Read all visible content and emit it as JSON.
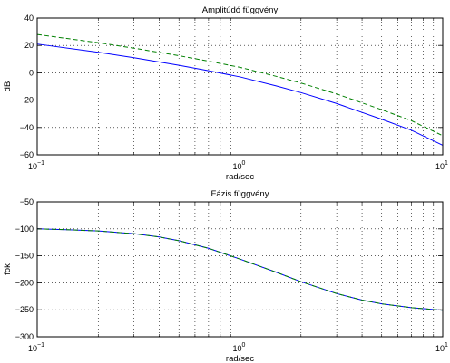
{
  "chart_data": [
    {
      "type": "line",
      "title": "Amplitúdó függvény",
      "xlabel": "rad/sec",
      "ylabel": "dB",
      "xscale": "log",
      "xlim": [
        0.1,
        10
      ],
      "ylim": [
        -60,
        40
      ],
      "x_tick_labels": [
        {
          "base": "10",
          "exp": "−1"
        },
        {
          "base": "10",
          "exp": "0"
        },
        {
          "base": "10",
          "exp": "1"
        }
      ],
      "y_ticks": [
        40,
        20,
        0,
        -20,
        -40,
        -60
      ],
      "grid": "dotted",
      "x": [
        0.1,
        0.2,
        0.3,
        0.5,
        0.7,
        1,
        1.5,
        2,
        3,
        4,
        5,
        7,
        10
      ],
      "series": [
        {
          "color": "#0000ff",
          "style": "solid",
          "values": [
            21,
            15,
            11,
            5.5,
            1.5,
            -3,
            -9.5,
            -14.5,
            -22.5,
            -29,
            -34,
            -42,
            -53
          ]
        },
        {
          "color": "#008000",
          "style": "dashed",
          "values": [
            28,
            22,
            18,
            12.5,
            8.5,
            4,
            -2.5,
            -7.5,
            -15.5,
            -22,
            -27,
            -35,
            -46
          ]
        }
      ]
    },
    {
      "type": "line",
      "title": "Fázis függvény",
      "xlabel": "rad/sec",
      "ylabel": "fok",
      "xscale": "log",
      "xlim": [
        0.1,
        10
      ],
      "ylim": [
        -300,
        -50
      ],
      "x_tick_labels": [
        {
          "base": "10",
          "exp": "−1"
        },
        {
          "base": "10",
          "exp": "0"
        },
        {
          "base": "10",
          "exp": "1"
        }
      ],
      "y_ticks": [
        -50,
        -100,
        -150,
        -200,
        -250,
        -300
      ],
      "grid": "dotted",
      "x": [
        0.1,
        0.15,
        0.2,
        0.3,
        0.4,
        0.5,
        0.7,
        1,
        1.5,
        2,
        3,
        4,
        5,
        7,
        10
      ],
      "series": [
        {
          "color": "#0000ff",
          "style": "solid",
          "values": [
            -100,
            -102,
            -104,
            -109,
            -115,
            -122,
            -136,
            -156,
            -180,
            -198,
            -220,
            -232,
            -239,
            -246,
            -251
          ]
        },
        {
          "color": "#008000",
          "style": "dashed",
          "values": [
            -100,
            -102,
            -104,
            -109,
            -115,
            -122,
            -136,
            -156,
            -180,
            -198,
            -220,
            -232,
            -239,
            -246,
            -251
          ]
        }
      ]
    }
  ]
}
